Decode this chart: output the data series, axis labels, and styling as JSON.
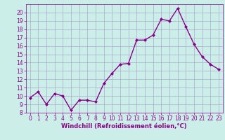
{
  "x": [
    0,
    1,
    2,
    3,
    4,
    5,
    6,
    7,
    8,
    9,
    10,
    11,
    12,
    13,
    14,
    15,
    16,
    17,
    18,
    19,
    20,
    21,
    22,
    23
  ],
  "y": [
    9.8,
    10.5,
    9.0,
    10.3,
    10.0,
    8.3,
    9.5,
    9.5,
    9.3,
    11.5,
    12.7,
    13.8,
    13.9,
    16.7,
    16.7,
    17.3,
    19.2,
    19.0,
    20.5,
    18.3,
    16.2,
    14.7,
    13.8,
    13.2
  ],
  "line_color": "#8B008B",
  "marker": "D",
  "marker_size": 2.0,
  "line_width": 1.0,
  "bg_color": "#cceee8",
  "grid_color": "#aaaacc",
  "xlabel": "Windchill (Refroidissement éolien,°C)",
  "xlabel_color": "#8B008B",
  "tick_color": "#8B008B",
  "ylim": [
    8,
    21
  ],
  "xlim": [
    -0.5,
    23.5
  ],
  "yticks": [
    8,
    9,
    10,
    11,
    12,
    13,
    14,
    15,
    16,
    17,
    18,
    19,
    20
  ],
  "xticks": [
    0,
    1,
    2,
    3,
    4,
    5,
    6,
    7,
    8,
    9,
    10,
    11,
    12,
    13,
    14,
    15,
    16,
    17,
    18,
    19,
    20,
    21,
    22,
    23
  ],
  "tick_fontsize": 5.5,
  "xlabel_fontsize": 6.0
}
